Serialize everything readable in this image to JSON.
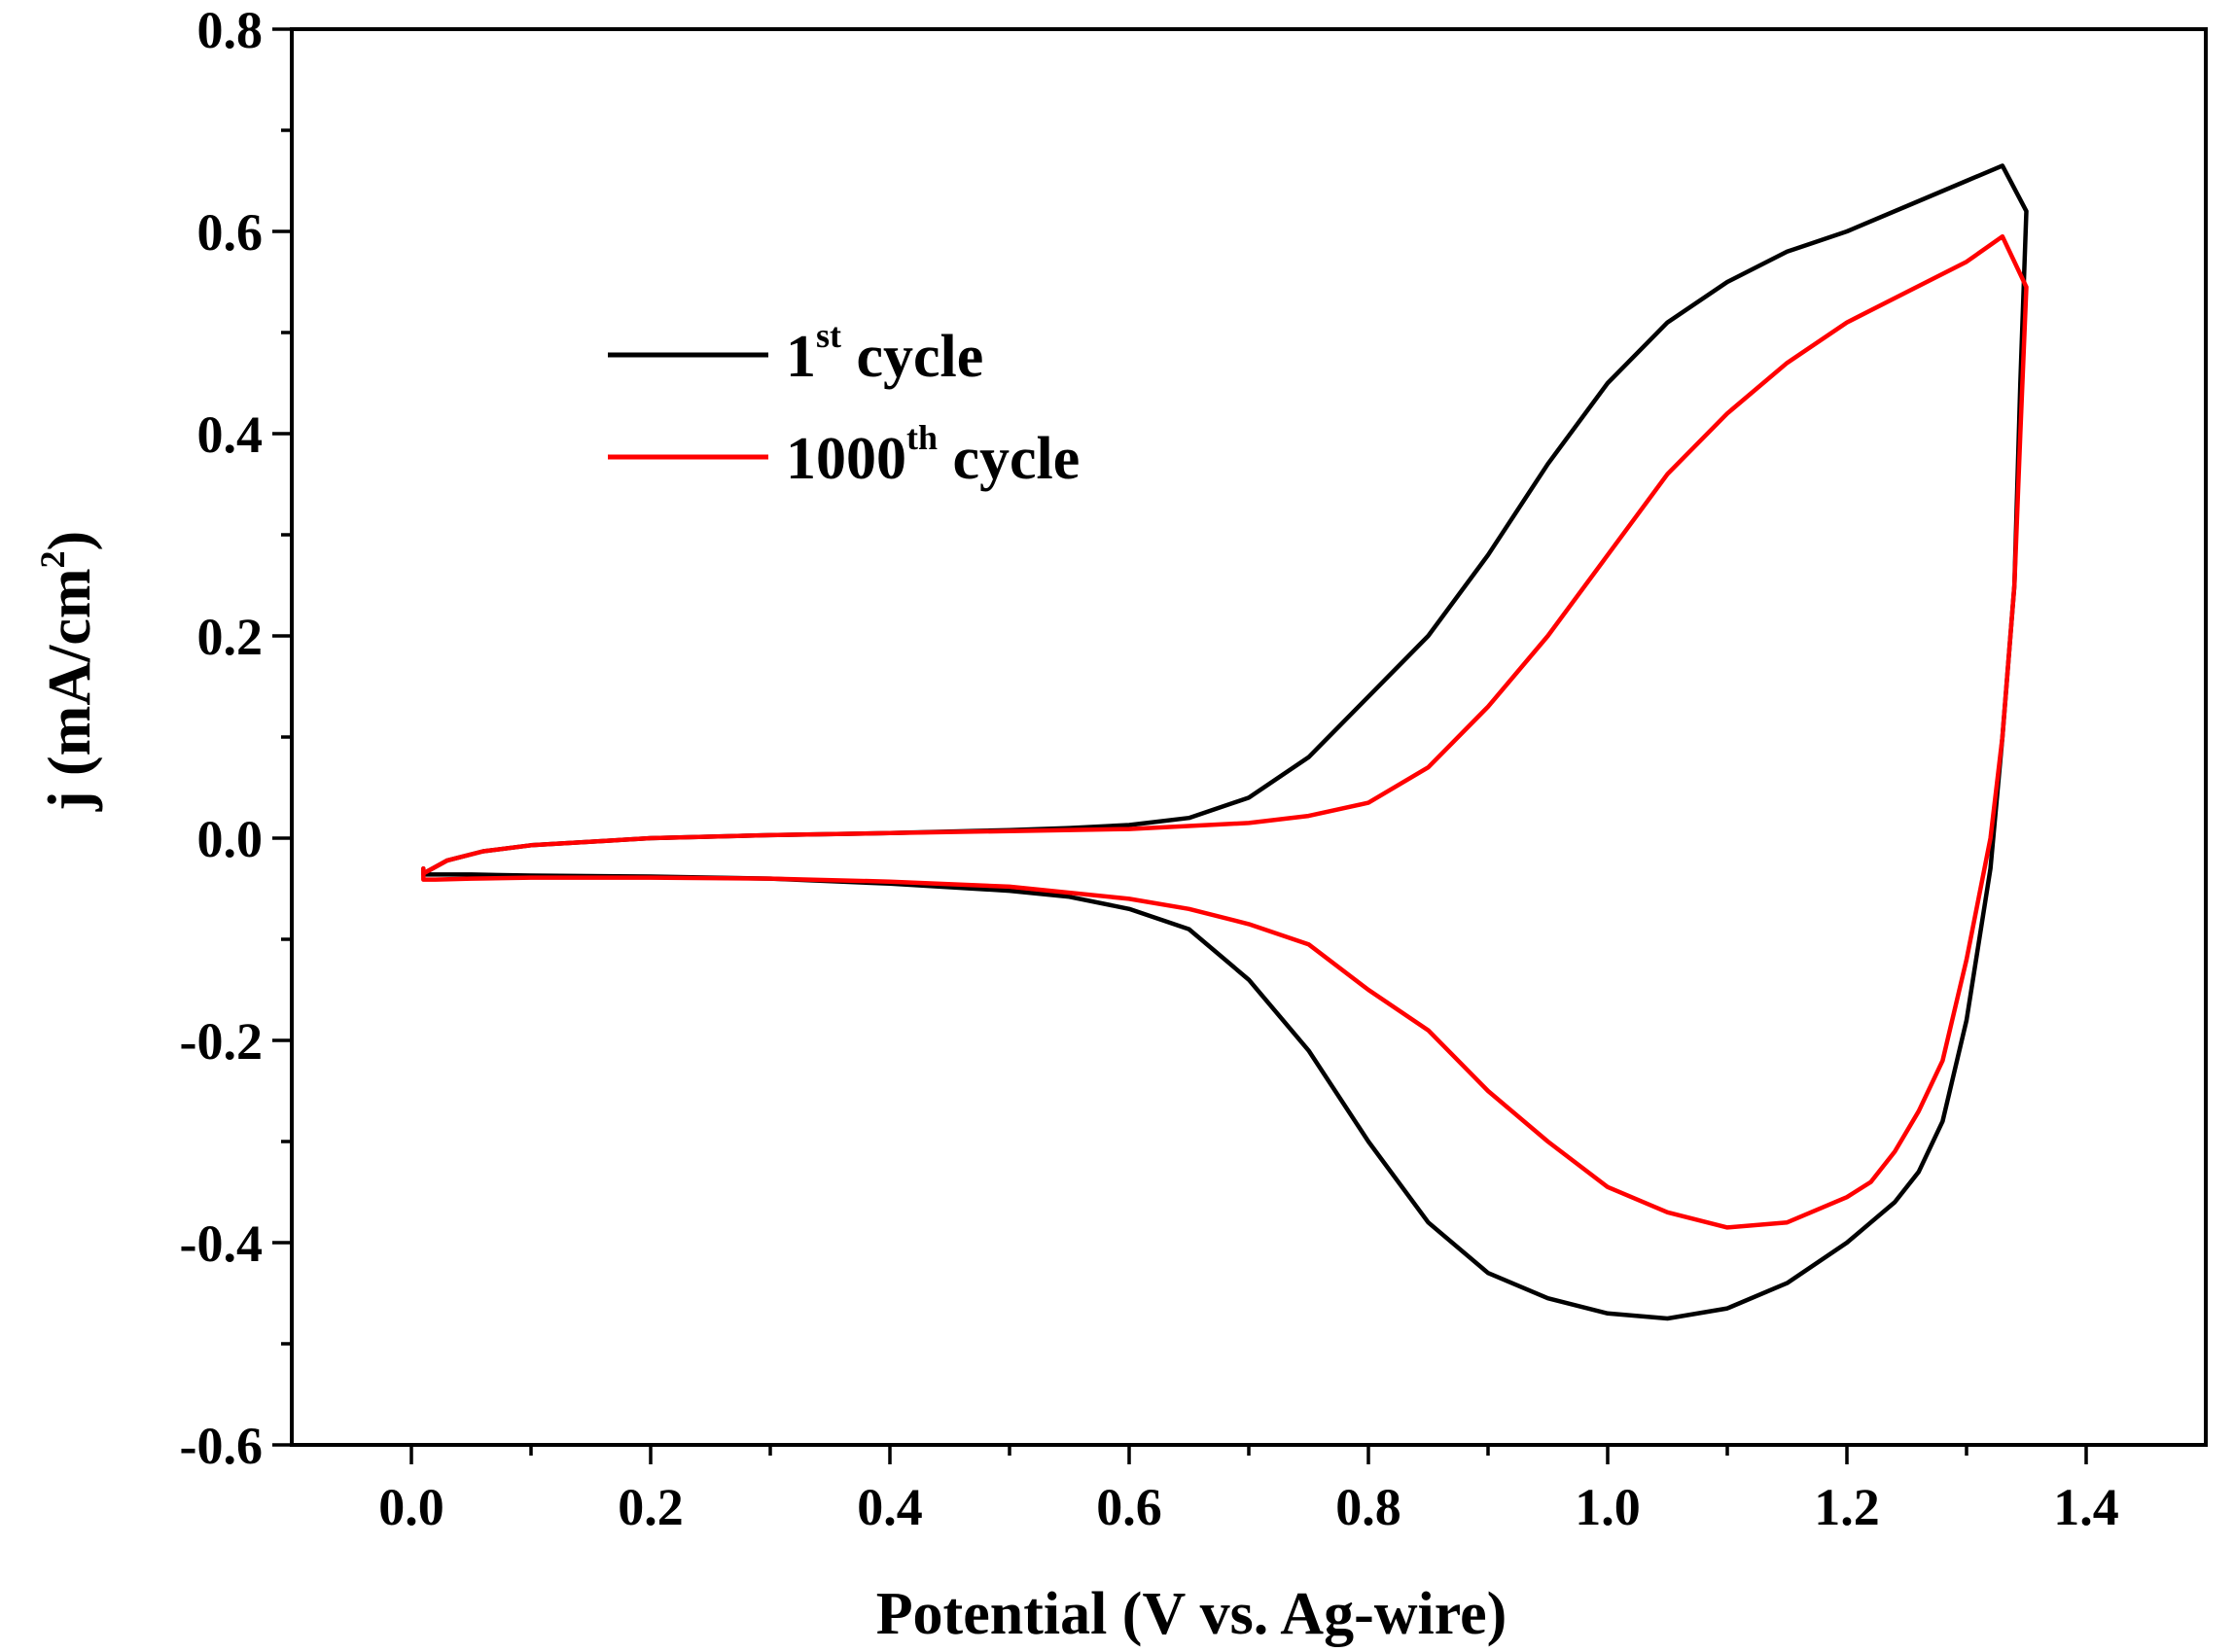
{
  "chart_data": {
    "type": "line",
    "title": "",
    "xlabel": "Potential (V vs. Ag-wire)",
    "ylabel": "j (mA/cm",
    "ylabel_sup": "2",
    "ylabel_close": ")",
    "xlim": [
      -0.1,
      1.5
    ],
    "ylim": [
      -0.6,
      0.8
    ],
    "x_ticks": [
      {
        "value": 0.0,
        "label": "0.0"
      },
      {
        "value": 0.2,
        "label": "0.2"
      },
      {
        "value": 0.4,
        "label": "0.4"
      },
      {
        "value": 0.6,
        "label": "0.6"
      },
      {
        "value": 0.8,
        "label": "0.8"
      },
      {
        "value": 1.0,
        "label": "1.0"
      },
      {
        "value": 1.2,
        "label": "1.2"
      },
      {
        "value": 1.4,
        "label": "1.4"
      }
    ],
    "y_ticks": [
      {
        "value": -0.6,
        "label": "-0.6"
      },
      {
        "value": -0.4,
        "label": "-0.4"
      },
      {
        "value": -0.2,
        "label": "-0.2"
      },
      {
        "value": 0.0,
        "label": "0.0"
      },
      {
        "value": 0.2,
        "label": "0.2"
      },
      {
        "value": 0.4,
        "label": "0.4"
      },
      {
        "value": 0.6,
        "label": "0.6"
      },
      {
        "value": 0.8,
        "label": "0.8"
      }
    ],
    "x_minor_step": 0.1,
    "y_minor_step": 0.1,
    "grid": false,
    "legend_position": "top-left",
    "series": [
      {
        "name": "1st cycle",
        "label_main": "1",
        "label_sup": "st",
        "label_rest": " cycle",
        "color": "#000000",
        "x": [
          0.01,
          0.03,
          0.06,
          0.1,
          0.2,
          0.3,
          0.4,
          0.5,
          0.55,
          0.6,
          0.65,
          0.7,
          0.75,
          0.8,
          0.85,
          0.9,
          0.95,
          1.0,
          1.05,
          1.1,
          1.15,
          1.2,
          1.25,
          1.3,
          1.33,
          1.35,
          1.345,
          1.34,
          1.33,
          1.32,
          1.3,
          1.28,
          1.26,
          1.24,
          1.22,
          1.2,
          1.15,
          1.1,
          1.05,
          1.0,
          0.95,
          0.9,
          0.85,
          0.8,
          0.75,
          0.7,
          0.65,
          0.6,
          0.55,
          0.5,
          0.4,
          0.3,
          0.2,
          0.1,
          0.05,
          0.02,
          0.01,
          0.01
        ],
        "y": [
          -0.035,
          -0.022,
          -0.013,
          -0.007,
          0.0,
          0.003,
          0.005,
          0.008,
          0.01,
          0.013,
          0.02,
          0.04,
          0.08,
          0.14,
          0.2,
          0.28,
          0.37,
          0.45,
          0.51,
          0.55,
          0.58,
          0.6,
          0.625,
          0.65,
          0.665,
          0.62,
          0.45,
          0.25,
          0.1,
          -0.03,
          -0.18,
          -0.28,
          -0.33,
          -0.36,
          -0.38,
          -0.4,
          -0.44,
          -0.465,
          -0.475,
          -0.47,
          -0.455,
          -0.43,
          -0.38,
          -0.3,
          -0.21,
          -0.14,
          -0.09,
          -0.07,
          -0.058,
          -0.052,
          -0.045,
          -0.04,
          -0.038,
          -0.037,
          -0.036,
          -0.036,
          -0.036,
          -0.03
        ]
      },
      {
        "name": "1000th cycle",
        "label_main": "1000",
        "label_sup": "th",
        "label_rest": " cycle",
        "color": "#ff0000",
        "x": [
          0.01,
          0.03,
          0.06,
          0.1,
          0.2,
          0.3,
          0.4,
          0.5,
          0.6,
          0.7,
          0.75,
          0.8,
          0.85,
          0.9,
          0.95,
          1.0,
          1.05,
          1.1,
          1.15,
          1.2,
          1.25,
          1.3,
          1.33,
          1.35,
          1.345,
          1.34,
          1.33,
          1.32,
          1.3,
          1.28,
          1.26,
          1.24,
          1.22,
          1.2,
          1.15,
          1.1,
          1.05,
          1.0,
          0.95,
          0.9,
          0.85,
          0.8,
          0.75,
          0.7,
          0.65,
          0.6,
          0.5,
          0.4,
          0.3,
          0.2,
          0.1,
          0.05,
          0.02,
          0.01,
          0.01
        ],
        "y": [
          -0.035,
          -0.022,
          -0.013,
          -0.007,
          0.0,
          0.003,
          0.005,
          0.007,
          0.009,
          0.015,
          0.022,
          0.035,
          0.07,
          0.13,
          0.2,
          0.28,
          0.36,
          0.42,
          0.47,
          0.51,
          0.54,
          0.57,
          0.595,
          0.545,
          0.4,
          0.25,
          0.1,
          0.0,
          -0.12,
          -0.22,
          -0.27,
          -0.31,
          -0.34,
          -0.355,
          -0.38,
          -0.385,
          -0.37,
          -0.345,
          -0.3,
          -0.25,
          -0.19,
          -0.15,
          -0.105,
          -0.085,
          -0.07,
          -0.06,
          -0.048,
          -0.043,
          -0.04,
          -0.039,
          -0.039,
          -0.04,
          -0.041,
          -0.041,
          -0.03
        ]
      }
    ]
  }
}
